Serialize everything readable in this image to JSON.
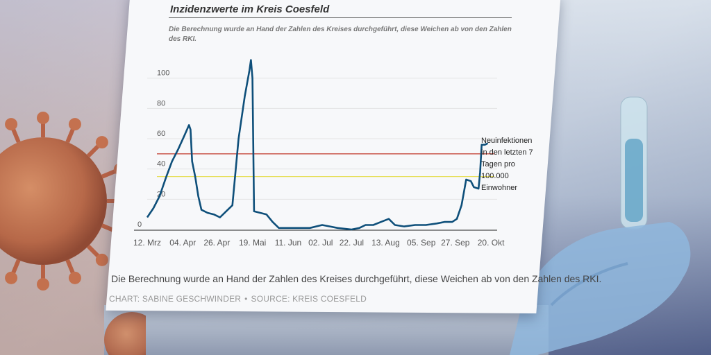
{
  "chart_data": {
    "type": "line",
    "title": "Inzidenzwerte im Kreis Coesfeld",
    "subtitle": "Die Berechnung wurde an Hand der Zahlen des Kreises durchgeführt, diese Weichen ab von den Zahlen des RKI.",
    "ylabel_note": "Neuinfektionen in den letzten 7 Tagen pro 100.000 Einwohner",
    "ylim": [
      0,
      115
    ],
    "yticks": [
      0,
      20,
      40,
      60,
      80,
      100
    ],
    "xlim": [
      "2020-03-12",
      "2020-10-24"
    ],
    "xticks": [
      {
        "date": "2020-03-12",
        "label": "12. Mrz"
      },
      {
        "date": "2020-04-04",
        "label": "04. Apr"
      },
      {
        "date": "2020-04-26",
        "label": "26. Apr"
      },
      {
        "date": "2020-05-19",
        "label": "19. Mai"
      },
      {
        "date": "2020-06-11",
        "label": "11. Jun"
      },
      {
        "date": "2020-07-02",
        "label": "02. Jul"
      },
      {
        "date": "2020-07-22",
        "label": "22. Jul"
      },
      {
        "date": "2020-08-13",
        "label": "13. Aug"
      },
      {
        "date": "2020-09-05",
        "label": "05. Sep"
      },
      {
        "date": "2020-09-27",
        "label": "27. Sep"
      },
      {
        "date": "2020-10-20",
        "label": "20. Okt"
      }
    ],
    "reference_lines": [
      {
        "value": 50,
        "color": "#c0392b"
      },
      {
        "value": 35,
        "color": "#e6df5a"
      }
    ],
    "series": [
      {
        "color": "#0e4f7a",
        "points": [
          [
            "2020-03-12",
            8
          ],
          [
            "2020-03-16",
            14
          ],
          [
            "2020-03-20",
            22
          ],
          [
            "2020-03-24",
            34
          ],
          [
            "2020-03-28",
            45
          ],
          [
            "2020-04-01",
            53
          ],
          [
            "2020-04-05",
            62
          ],
          [
            "2020-04-08",
            69
          ],
          [
            "2020-04-09",
            66
          ],
          [
            "2020-04-10",
            45
          ],
          [
            "2020-04-12",
            35
          ],
          [
            "2020-04-14",
            22
          ],
          [
            "2020-04-16",
            13
          ],
          [
            "2020-04-20",
            11
          ],
          [
            "2020-04-24",
            10
          ],
          [
            "2020-04-28",
            8
          ],
          [
            "2020-05-02",
            12
          ],
          [
            "2020-05-06",
            16
          ],
          [
            "2020-05-10",
            60
          ],
          [
            "2020-05-14",
            88
          ],
          [
            "2020-05-17",
            105
          ],
          [
            "2020-05-18",
            112
          ],
          [
            "2020-05-19",
            100
          ],
          [
            "2020-05-20",
            12
          ],
          [
            "2020-05-24",
            11
          ],
          [
            "2020-05-28",
            10
          ],
          [
            "2020-06-01",
            5
          ],
          [
            "2020-06-05",
            1
          ],
          [
            "2020-06-15",
            1
          ],
          [
            "2020-06-25",
            1
          ],
          [
            "2020-07-03",
            3
          ],
          [
            "2020-07-08",
            2
          ],
          [
            "2020-07-13",
            1
          ],
          [
            "2020-07-22",
            0
          ],
          [
            "2020-07-27",
            1
          ],
          [
            "2020-07-31",
            3
          ],
          [
            "2020-08-05",
            3
          ],
          [
            "2020-08-10",
            5
          ],
          [
            "2020-08-15",
            7
          ],
          [
            "2020-08-19",
            3
          ],
          [
            "2020-08-25",
            2
          ],
          [
            "2020-09-01",
            3
          ],
          [
            "2020-09-08",
            3
          ],
          [
            "2020-09-15",
            4
          ],
          [
            "2020-09-20",
            5
          ],
          [
            "2020-09-25",
            5
          ],
          [
            "2020-09-28",
            7
          ],
          [
            "2020-10-01",
            16
          ],
          [
            "2020-10-04",
            33
          ],
          [
            "2020-10-07",
            32
          ],
          [
            "2020-10-09",
            28
          ],
          [
            "2020-10-12",
            27
          ],
          [
            "2020-10-13",
            38
          ],
          [
            "2020-10-14",
            56
          ],
          [
            "2020-10-16",
            56
          ],
          [
            "2020-10-18",
            57
          ]
        ]
      }
    ]
  },
  "footnote": "Die Berechnung wurde an Hand der Zahlen des Kreises durchgeführt, diese Weichen ab von den Zahlen des RKI.",
  "credit": {
    "chart": "CHART: SABINE GESCHWINDER",
    "separator": "•",
    "source": "SOURCE:  KREIS COESFELD"
  }
}
